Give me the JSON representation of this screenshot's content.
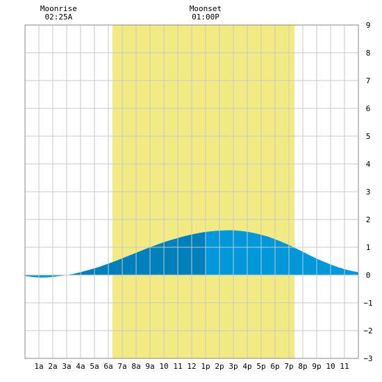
{
  "chart_data": {
    "type": "area",
    "title": "",
    "xlabel": "",
    "ylabel": "",
    "x_tick_labels": [
      "1a",
      "2a",
      "3a",
      "4a",
      "5a",
      "6a",
      "7a",
      "8a",
      "9a",
      "10",
      "11",
      "12",
      "1p",
      "2p",
      "3p",
      "4p",
      "5p",
      "6p",
      "7p",
      "8p",
      "9p",
      "10",
      "11"
    ],
    "xlim": [
      0,
      24
    ],
    "ylim": [
      -3,
      9
    ],
    "y_ticks": [
      9,
      8,
      7,
      6,
      5,
      4,
      3,
      2,
      1,
      0,
      -1,
      -2,
      -3
    ],
    "grid": true,
    "daylight": {
      "start": 6.3,
      "end": 19.4
    },
    "moon": {
      "rise_label": "Moonrise",
      "rise_time": "02:25A",
      "rise_hour": 2.42,
      "set_label": "Moonset",
      "set_time": "01:00P",
      "set_hour": 13.0
    },
    "series": [
      {
        "x": [
          0,
          0.5,
          1,
          1.5,
          2,
          2.5,
          3,
          3.5,
          4,
          4.5,
          5,
          5.5,
          6,
          6.5,
          7,
          7.5,
          8,
          8.5,
          9,
          9.5,
          10,
          10.5,
          11,
          11.5,
          12,
          12.5,
          13,
          13.5,
          14,
          14.5,
          15,
          15.5,
          16,
          16.5,
          17,
          17.5,
          18,
          18.5,
          19,
          19.5,
          20,
          20.5,
          21,
          21.5,
          22,
          22.5,
          23,
          23.5,
          24
        ],
        "values": [
          -0.03,
          -0.07,
          -0.09,
          -0.09,
          -0.07,
          -0.03,
          0.0,
          0.04,
          0.1,
          0.17,
          0.24,
          0.32,
          0.41,
          0.5,
          0.6,
          0.7,
          0.8,
          0.9,
          1.0,
          1.09,
          1.18,
          1.26,
          1.33,
          1.4,
          1.46,
          1.51,
          1.55,
          1.58,
          1.6,
          1.61,
          1.61,
          1.59,
          1.56,
          1.51,
          1.45,
          1.38,
          1.29,
          1.19,
          1.08,
          0.96,
          0.84,
          0.71,
          0.59,
          0.48,
          0.38,
          0.29,
          0.21,
          0.15,
          0.1
        ]
      }
    ],
    "colors": {
      "daylight": "#f2eb84",
      "tide_light": "#0097db",
      "tide_dark": "#0080ba",
      "grid": "#c8c8c8",
      "frame": "#888888"
    }
  }
}
